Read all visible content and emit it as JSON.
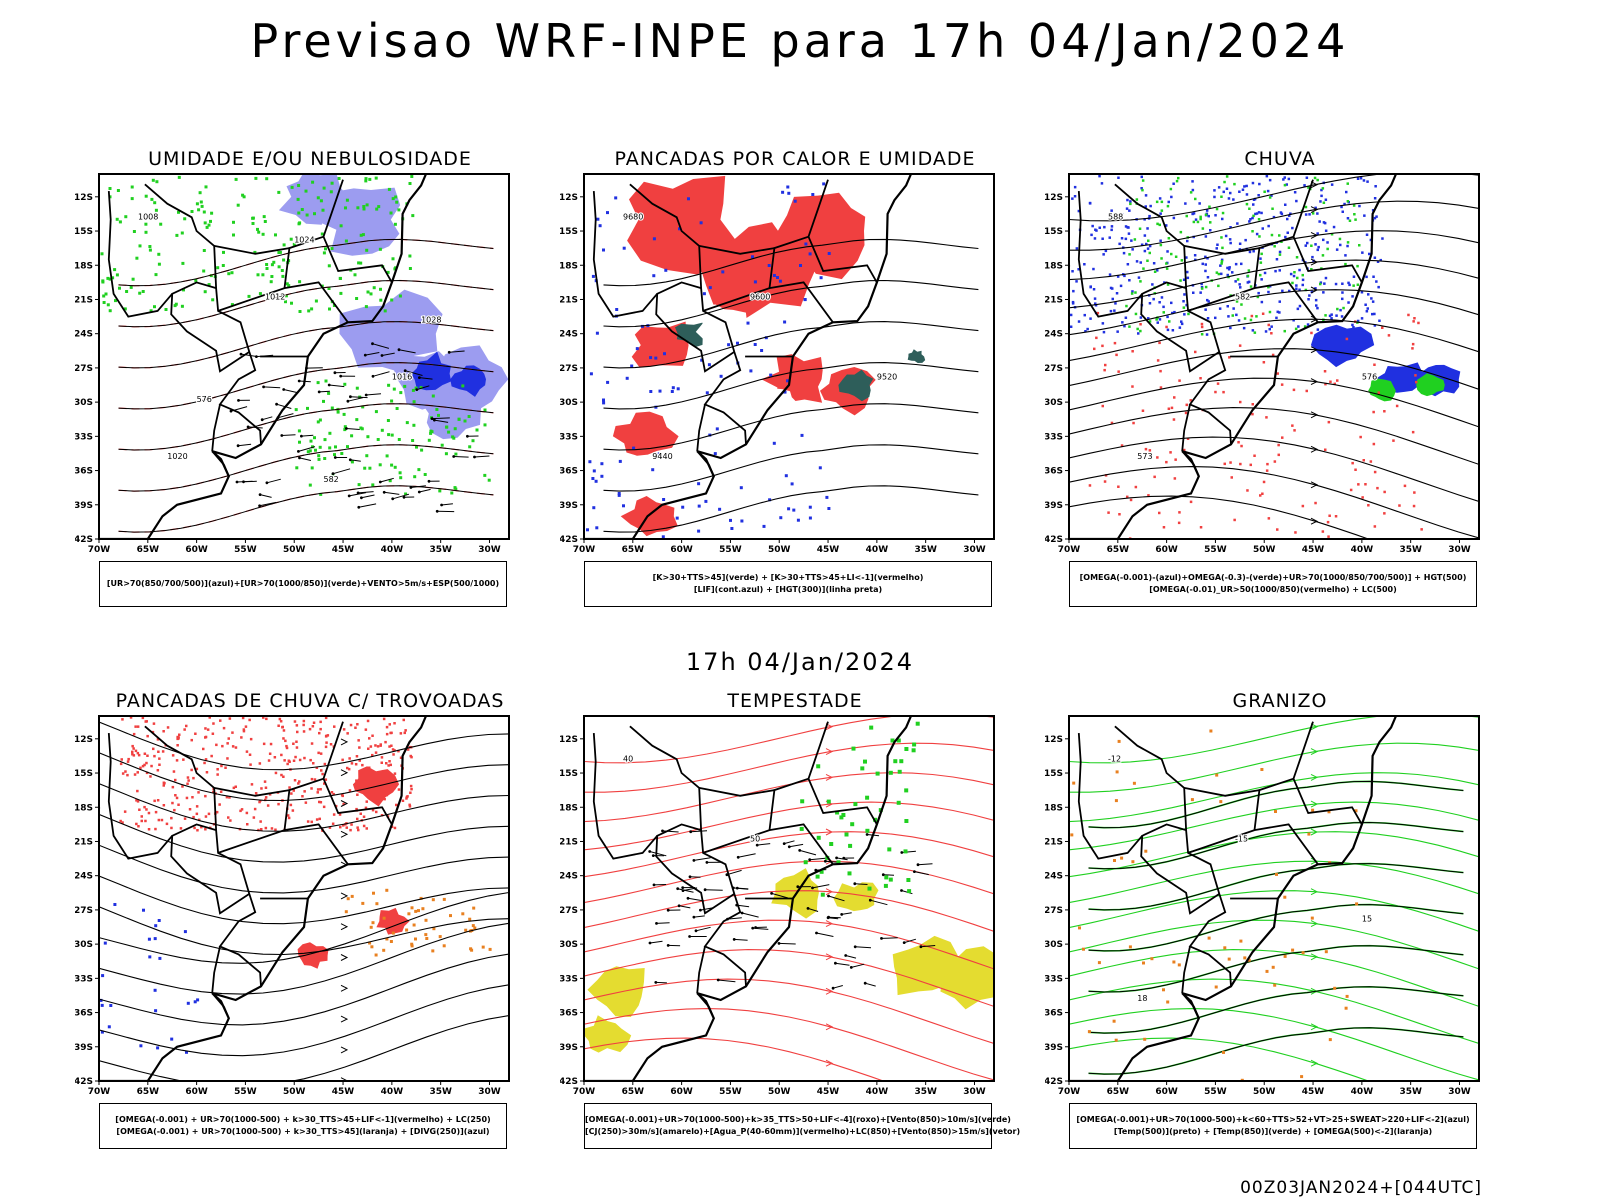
{
  "title": "Previsao WRF-INPE  para 17h 04/Jan/2024",
  "subtitle": "17h 04/Jan/2024",
  "footer": "00Z03JAN2024+[044UTC]",
  "colors": {
    "red": "#f04040",
    "blue": "#2030e0",
    "green": "#20d020",
    "lavender": "#9c9cf0",
    "teal": "#2e5e5a",
    "yellow": "#e4dc30",
    "orange": "#e88020",
    "black": "#000000"
  },
  "chart_data": [
    {
      "type": "map",
      "title": "UMIDADE E/OU NEBULOSIDADE",
      "lat_labels": [
        "12S",
        "15S",
        "18S",
        "21S",
        "24S",
        "27S",
        "30S",
        "33S",
        "36S",
        "39S",
        "42S"
      ],
      "lon_labels": [
        "70W",
        "65W",
        "60W",
        "55W",
        "50W",
        "45W",
        "40W",
        "35W",
        "30W"
      ],
      "legend": [
        "[UR>70(850/700/500)](azul)+[UR>70(1000/850)](verde)+VENTO>5m/s+ESP(500/1000)"
      ],
      "contour_labels": [
        "1008",
        "1012",
        "1016",
        "1020",
        "1024",
        "1028",
        "576",
        "582"
      ]
    },
    {
      "type": "map",
      "title": "PANCADAS POR CALOR E UMIDADE",
      "lat_labels": [
        "12S",
        "15S",
        "18S",
        "21S",
        "24S",
        "27S",
        "30S",
        "33S",
        "36S",
        "39S",
        "42S"
      ],
      "lon_labels": [
        "70W",
        "65W",
        "60W",
        "55W",
        "50W",
        "45W",
        "40W",
        "35W",
        "30W"
      ],
      "legend": [
        "[K>30+TTS>45](verde) + [K>30+TTS>45+LI<-1](vermelho)",
        "[LIF](cont.azul) + [HGT(300)](linha preta)"
      ],
      "contour_labels": [
        "9680",
        "9600",
        "9520",
        "9440"
      ]
    },
    {
      "type": "map",
      "title": "CHUVA",
      "lat_labels": [
        "12S",
        "15S",
        "18S",
        "21S",
        "24S",
        "27S",
        "30S",
        "33S",
        "36S",
        "39S",
        "42S"
      ],
      "lon_labels": [
        "70W",
        "65W",
        "60W",
        "55W",
        "50W",
        "45W",
        "40W",
        "35W",
        "30W"
      ],
      "legend": [
        "[OMEGA(-0.001)-(azul)+OMEGA(-0.3)-(verde)+UR>70(1000/850/700/500)] + HGT(500)",
        "[OMEGA(-0.01)_UR>50(1000/850)(vermelho) + LC(500)"
      ],
      "contour_labels": [
        "588",
        "582",
        "576",
        "573"
      ]
    },
    {
      "type": "map",
      "title": "PANCADAS DE CHUVA C/ TROVOADAS",
      "lat_labels": [
        "12S",
        "15S",
        "18S",
        "21S",
        "24S",
        "27S",
        "30S",
        "33S",
        "36S",
        "39S",
        "42S"
      ],
      "lon_labels": [
        "70W",
        "65W",
        "60W",
        "55W",
        "50W",
        "45W",
        "40W",
        "35W",
        "30W"
      ],
      "legend": [
        "[OMEGA(-0.001) + UR>70(1000-500) + k>30_TTS>45+LIF<-1](vermelho) + LC(250)",
        "[OMEGA(-0.001) + UR>70(1000-500) + k>30_TTS>45](laranja) + [DIVG(250)](azul)"
      ],
      "contour_labels": []
    },
    {
      "type": "map",
      "title": "TEMPESTADE",
      "lat_labels": [
        "12S",
        "15S",
        "18S",
        "21S",
        "24S",
        "27S",
        "30S",
        "33S",
        "36S",
        "39S",
        "42S"
      ],
      "lon_labels": [
        "70W",
        "65W",
        "60W",
        "55W",
        "50W",
        "45W",
        "40W",
        "35W",
        "30W"
      ],
      "legend": [
        "[OMEGA(-0.001)+UR>70(1000-500)+k>35_TTS>50+LIF<-4](roxo)+[Vento(850)>10m/s](verde)",
        "[CJ(250)>30m/s](amarelo)+[Agua_P(40-60mm)](vermelho)+LC(850)+[Vento(850)>15m/s](vetor)"
      ],
      "contour_labels": [
        "40",
        "50"
      ]
    },
    {
      "type": "map",
      "title": "GRANIZO",
      "lat_labels": [
        "12S",
        "15S",
        "18S",
        "21S",
        "24S",
        "27S",
        "30S",
        "33S",
        "36S",
        "39S",
        "42S"
      ],
      "lon_labels": [
        "70W",
        "65W",
        "60W",
        "55W",
        "50W",
        "45W",
        "40W",
        "35W",
        "30W"
      ],
      "legend": [
        "[OMEGA(-0.001)+UR>70(1000-500)+k<60+TTS>52+VT>25+SWEAT>220+LIF<-2](azul)",
        "[Temp(500)](preto) + [Temp(850)](verde) + [OMEGA(500)<-2](laranja)"
      ],
      "contour_labels": [
        "-12",
        "-15",
        "15",
        "18"
      ]
    }
  ]
}
